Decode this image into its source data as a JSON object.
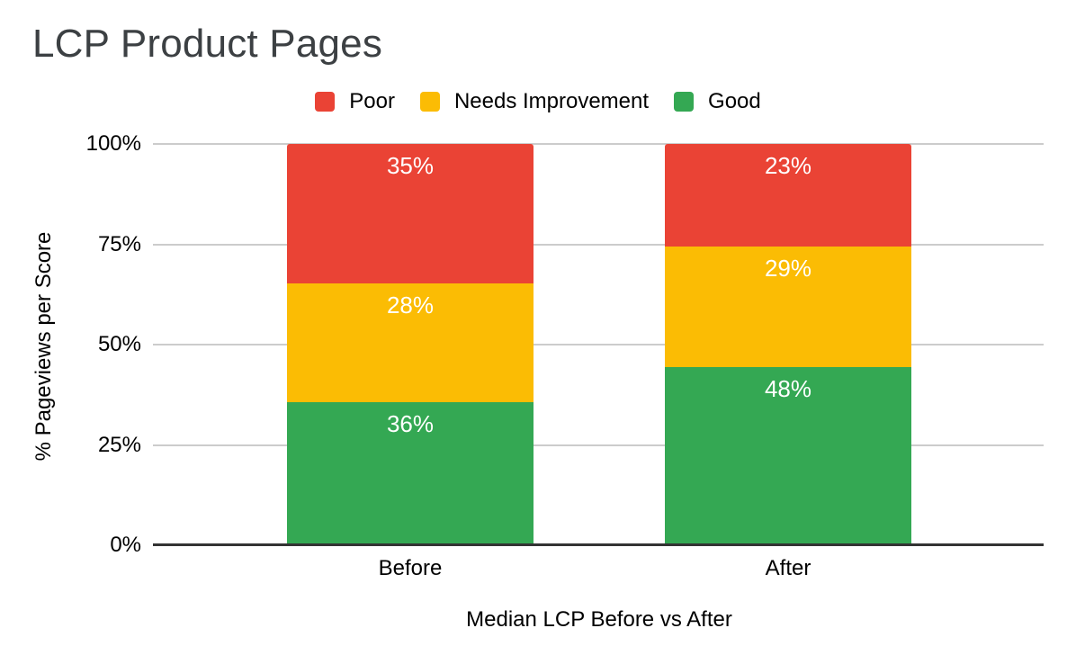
{
  "chart_data": {
    "type": "bar",
    "variant": "stacked-100-percent",
    "title": "LCP Product Pages",
    "categories": [
      "Before",
      "After"
    ],
    "series": [
      {
        "name": "Poor",
        "color": "#EA4335",
        "values": [
          35,
          23
        ]
      },
      {
        "name": "Needs Improvement",
        "color": "#FBBC04",
        "values": [
          28,
          29
        ]
      },
      {
        "name": "Good",
        "color": "#34A853",
        "values": [
          36,
          48
        ]
      }
    ],
    "value_suffix": "%",
    "xlabel": "Median LCP Before vs After",
    "ylabel": "% Pageviews per Score",
    "ylim": [
      0,
      100
    ],
    "yticks": [
      {
        "label": "100%",
        "value": 100
      },
      {
        "label": "75%",
        "value": 75
      },
      {
        "label": "50%",
        "value": 50
      },
      {
        "label": "25%",
        "value": 25
      },
      {
        "label": "0%",
        "value": 0
      }
    ],
    "grid": true,
    "legend_position": "top",
    "colors": {
      "gridline": "#cccccc",
      "axis_line": "#333333",
      "title_text": "#3c4043",
      "axis_text": "#000000",
      "data_label_text": "#ffffff",
      "background": "#ffffff"
    }
  }
}
